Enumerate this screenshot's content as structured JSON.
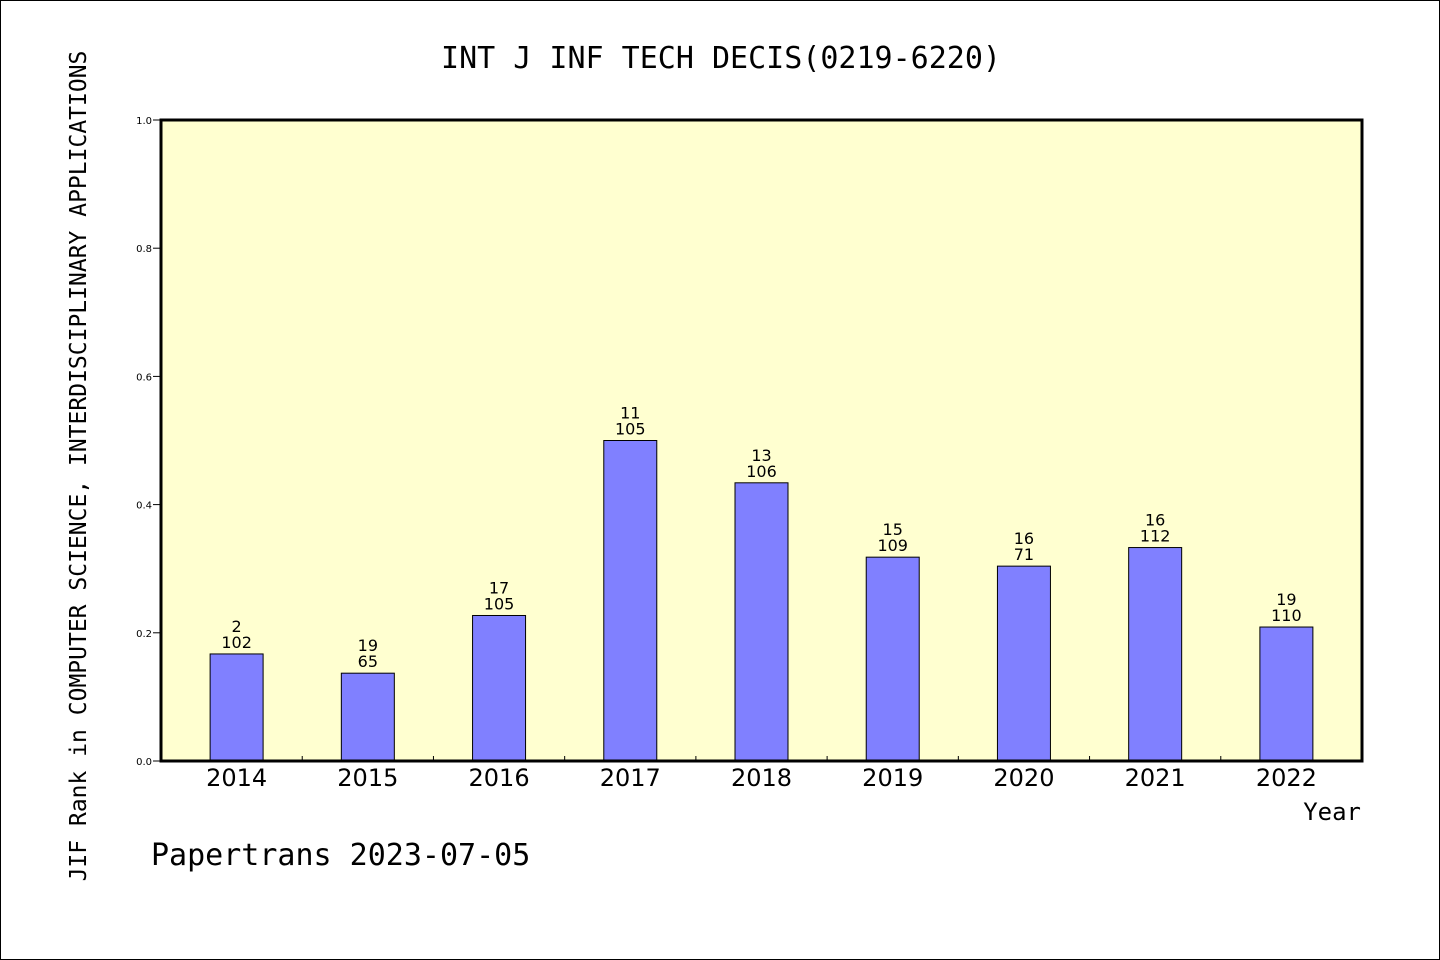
{
  "chart_data": {
    "type": "bar",
    "title": "INT J INF TECH DECIS(0219-6220)",
    "xlabel": "Year",
    "ylabel": "JIF Rank in COMPUTER SCIENCE, INTERDISCIPLINARY APPLICATIONS",
    "ylim": [
      0,
      1.0
    ],
    "yticks": [
      "0.0",
      "0.2",
      "0.4",
      "0.6",
      "0.8",
      "1.0"
    ],
    "categories": [
      "2014",
      "2015",
      "2016",
      "2017",
      "2018",
      "2019",
      "2020",
      "2021",
      "2022"
    ],
    "values": [
      0.167,
      0.137,
      0.227,
      0.5,
      0.434,
      0.318,
      0.304,
      0.333,
      0.209
    ],
    "rank": [
      "2",
      "19",
      "17",
      "11",
      "13",
      "15",
      "16",
      "16",
      "19"
    ],
    "total": [
      "102",
      "65",
      "105",
      "105",
      "106",
      "109",
      "71",
      "112",
      "110"
    ],
    "bar_color": "#8080ff",
    "plot_background": "#ffffd0",
    "grid": false
  },
  "footer": "Papertrans 2023-07-05"
}
